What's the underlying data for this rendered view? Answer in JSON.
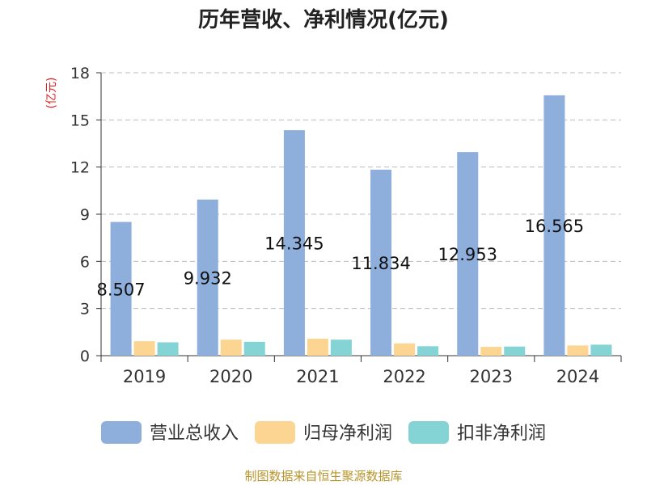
{
  "chart_data": {
    "type": "bar",
    "title": "历年营收、净利情况(亿元)",
    "ylabel": "(亿元)",
    "xlabel": "",
    "categories": [
      "2019",
      "2020",
      "2021",
      "2022",
      "2023",
      "2024"
    ],
    "ylim": [
      0,
      18
    ],
    "yticks": [
      0,
      3,
      6,
      9,
      12,
      15,
      18
    ],
    "grid": true,
    "legend_position": "bottom",
    "series": [
      {
        "name": "营业总收入",
        "color": "#8eaedb",
        "values": [
          8.507,
          9.932,
          14.345,
          11.834,
          12.953,
          16.565
        ],
        "labels": [
          "8.507",
          "9.932",
          "14.345",
          "11.834",
          "12.953",
          "16.565"
        ]
      },
      {
        "name": "归母净利润",
        "color": "#fdd592",
        "values": [
          0.92,
          1.02,
          1.08,
          0.78,
          0.56,
          0.65
        ]
      },
      {
        "name": "扣非净利润",
        "color": "#84d4d6",
        "values": [
          0.85,
          0.88,
          1.02,
          0.6,
          0.58,
          0.7
        ]
      }
    ]
  },
  "source_note": "制图数据来自恒生聚源数据库"
}
